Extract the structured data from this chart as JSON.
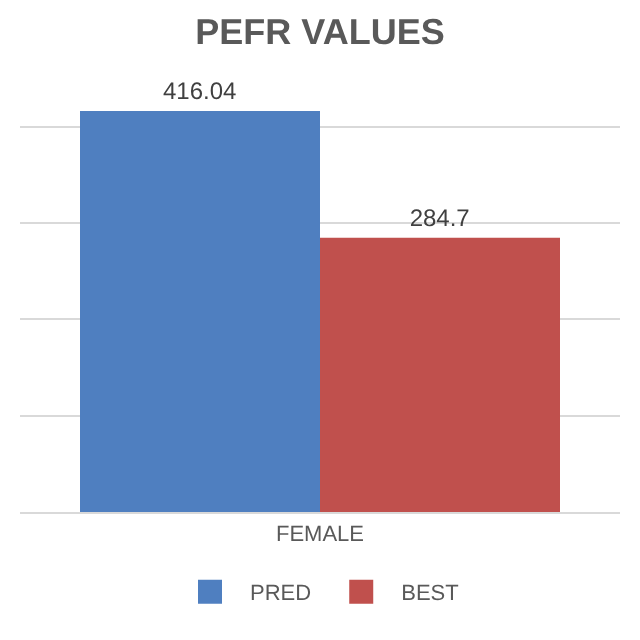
{
  "chart_data": {
    "type": "bar",
    "title": "PEFR VALUES",
    "xlabel": "FEMALE",
    "categories": [
      null
    ],
    "series": [
      {
        "name": "PRED",
        "color": "#4f7fc0",
        "values": [
          416.04
        ]
      },
      {
        "name": "BEST",
        "color": "#c0504d",
        "values": [
          284.7
        ]
      }
    ],
    "data_labels": true,
    "grid": "y",
    "legend": "bottom",
    "tick_labels": "x"
  }
}
